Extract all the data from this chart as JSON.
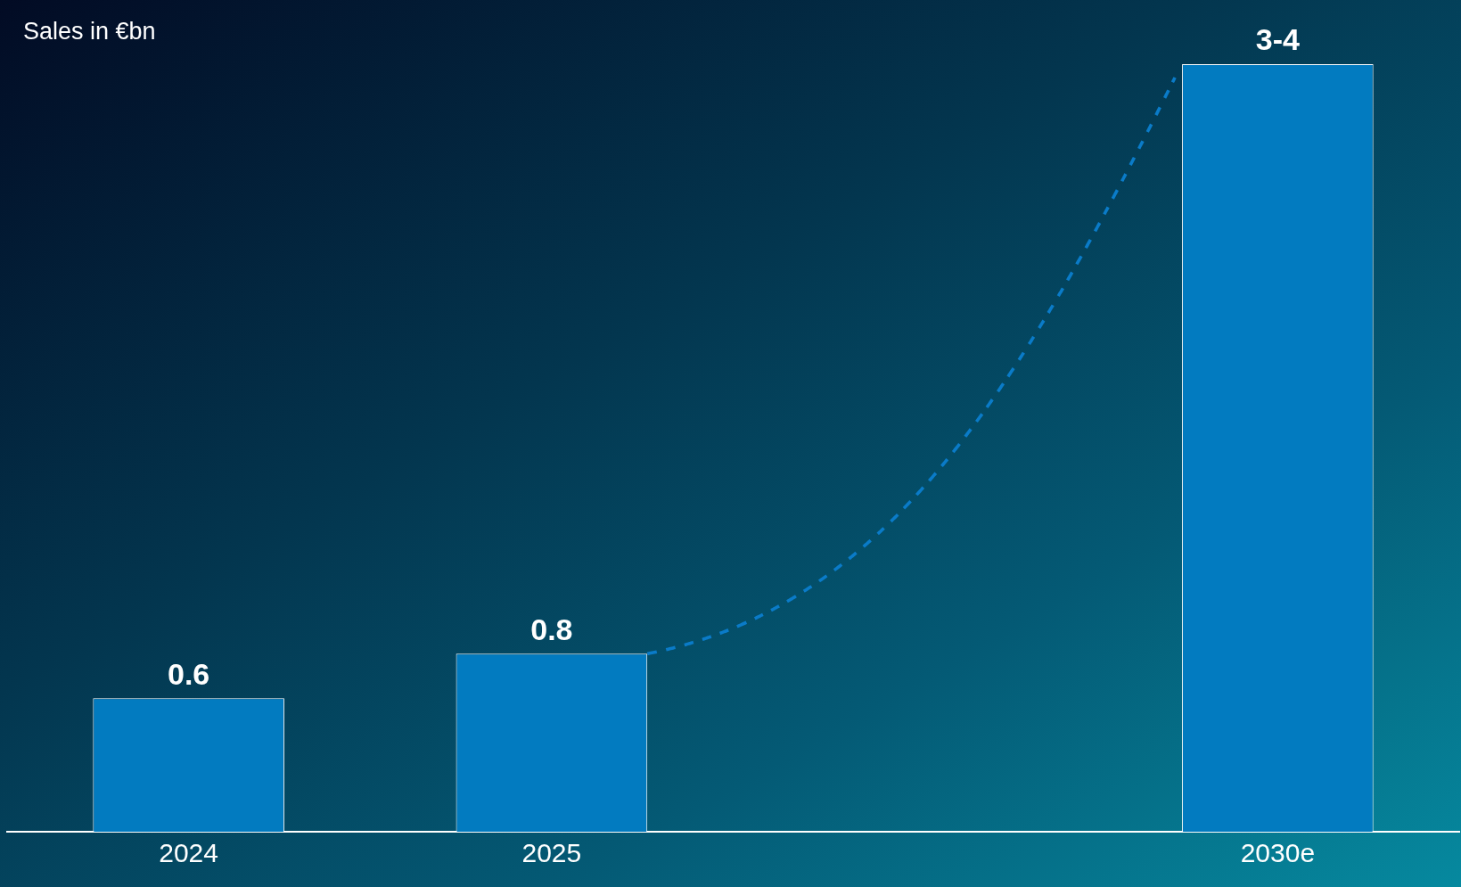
{
  "chart_data": {
    "type": "bar",
    "title": "Sales in €bn",
    "categories": [
      "2024",
      "2025",
      null,
      "2030e"
    ],
    "values": [
      0.6,
      0.8,
      null,
      3.45
    ],
    "value_labels": [
      "0.6",
      "0.8",
      null,
      "3-4"
    ],
    "color": "#027bc0",
    "grid": false,
    "legend": false,
    "tick_labels": "x"
  }
}
